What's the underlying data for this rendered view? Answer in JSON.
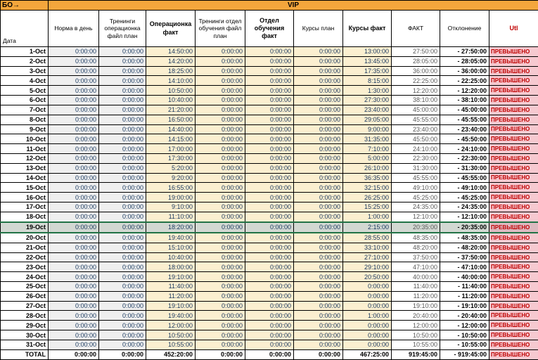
{
  "sheet": {
    "corner_label": "БО→",
    "group_title": "VIP",
    "date_header": "Дата",
    "headers": [
      "Норма в день",
      "Тренинги операционка файл план",
      "Операционка факт",
      "Тренинги отдел обучения файл план",
      "Отдел обучения факт",
      "Курсы план",
      "Курсы факт",
      "ФАКТ",
      "Отклонение",
      "Utl"
    ],
    "selected_date": "19-Oct",
    "total_label": "TOTAL",
    "status_exceeded": "ПРЕВЫШЕНО"
  },
  "rows": [
    [
      "1-Oct",
      "0:00:00",
      "0:00:00",
      "14:50:00",
      "0:00:00",
      "0:00:00",
      "0:00:00",
      "13:00:00",
      "27:50:00",
      "- 27:50:00",
      "ПРЕВЫШЕНО"
    ],
    [
      "2-Oct",
      "0:00:00",
      "0:00:00",
      "14:20:00",
      "0:00:00",
      "0:00:00",
      "0:00:00",
      "13:45:00",
      "28:05:00",
      "- 28:05:00",
      "ПРЕВЫШЕНО"
    ],
    [
      "3-Oct",
      "0:00:00",
      "0:00:00",
      "18:25:00",
      "0:00:00",
      "0:00:00",
      "0:00:00",
      "17:35:00",
      "36:00:00",
      "- 36:00:00",
      "ПРЕВЫШЕНО"
    ],
    [
      "4-Oct",
      "0:00:00",
      "0:00:00",
      "14:10:00",
      "0:00:00",
      "0:00:00",
      "0:00:00",
      "8:15:00",
      "22:25:00",
      "- 22:25:00",
      "ПРЕВЫШЕНО"
    ],
    [
      "5-Oct",
      "0:00:00",
      "0:00:00",
      "10:50:00",
      "0:00:00",
      "0:00:00",
      "0:00:00",
      "1:30:00",
      "12:20:00",
      "- 12:20:00",
      "ПРЕВЫШЕНО"
    ],
    [
      "6-Oct",
      "0:00:00",
      "0:00:00",
      "10:40:00",
      "0:00:00",
      "0:00:00",
      "0:00:00",
      "27:30:00",
      "38:10:00",
      "- 38:10:00",
      "ПРЕВЫШЕНО"
    ],
    [
      "7-Oct",
      "0:00:00",
      "0:00:00",
      "21:20:00",
      "0:00:00",
      "0:00:00",
      "0:00:00",
      "23:40:00",
      "45:00:00",
      "- 45:00:00",
      "ПРЕВЫШЕНО"
    ],
    [
      "8-Oct",
      "0:00:00",
      "0:00:00",
      "16:50:00",
      "0:00:00",
      "0:00:00",
      "0:00:00",
      "29:05:00",
      "45:55:00",
      "- 45:55:00",
      "ПРЕВЫШЕНО"
    ],
    [
      "9-Oct",
      "0:00:00",
      "0:00:00",
      "14:40:00",
      "0:00:00",
      "0:00:00",
      "0:00:00",
      "9:00:00",
      "23:40:00",
      "- 23:40:00",
      "ПРЕВЫШЕНО"
    ],
    [
      "10-Oct",
      "0:00:00",
      "0:00:00",
      "14:15:00",
      "0:00:00",
      "0:00:00",
      "0:00:00",
      "31:35:00",
      "45:50:00",
      "- 45:50:00",
      "ПРЕВЫШЕНО"
    ],
    [
      "11-Oct",
      "0:00:00",
      "0:00:00",
      "17:00:00",
      "0:00:00",
      "0:00:00",
      "0:00:00",
      "7:10:00",
      "24:10:00",
      "- 24:10:00",
      "ПРЕВЫШЕНО"
    ],
    [
      "12-Oct",
      "0:00:00",
      "0:00:00",
      "17:30:00",
      "0:00:00",
      "0:00:00",
      "0:00:00",
      "5:00:00",
      "22:30:00",
      "- 22:30:00",
      "ПРЕВЫШЕНО"
    ],
    [
      "13-Oct",
      "0:00:00",
      "0:00:00",
      "5:20:00",
      "0:00:00",
      "0:00:00",
      "0:00:00",
      "26:10:00",
      "31:30:00",
      "- 31:30:00",
      "ПРЕВЫШЕНО"
    ],
    [
      "14-Oct",
      "0:00:00",
      "0:00:00",
      "9:20:00",
      "0:00:00",
      "0:00:00",
      "0:00:00",
      "36:35:00",
      "45:55:00",
      "- 45:55:00",
      "ПРЕВЫШЕНО"
    ],
    [
      "15-Oct",
      "0:00:00",
      "0:00:00",
      "16:55:00",
      "0:00:00",
      "0:00:00",
      "0:00:00",
      "32:15:00",
      "49:10:00",
      "- 49:10:00",
      "ПРЕВЫШЕНО"
    ],
    [
      "16-Oct",
      "0:00:00",
      "0:00:00",
      "19:00:00",
      "0:00:00",
      "0:00:00",
      "0:00:00",
      "26:25:00",
      "45:25:00",
      "- 45:25:00",
      "ПРЕВЫШЕНО"
    ],
    [
      "17-Oct",
      "0:00:00",
      "0:00:00",
      "9:10:00",
      "0:00:00",
      "0:00:00",
      "0:00:00",
      "15:25:00",
      "24:35:00",
      "- 24:35:00",
      "ПРЕВЫШЕНО"
    ],
    [
      "18-Oct",
      "0:00:00",
      "0:00:00",
      "11:10:00",
      "0:00:00",
      "0:00:00",
      "0:00:00",
      "1:00:00",
      "12:10:00",
      "- 12:10:00",
      "ПРЕВЫШЕНО"
    ],
    [
      "19-Oct",
      "0:00:00",
      "0:00:00",
      "18:20:00",
      "0:00:00",
      "0:00:00",
      "0:00:00",
      "2:15:00",
      "20:35:00",
      "- 20:35:00",
      "ПРЕВЫШЕНО"
    ],
    [
      "20-Oct",
      "0:00:00",
      "0:00:00",
      "19:40:00",
      "0:00:00",
      "0:00:00",
      "0:00:00",
      "28:55:00",
      "48:35:00",
      "- 48:35:00",
      "ПРЕВЫШЕНО"
    ],
    [
      "21-Oct",
      "0:00:00",
      "0:00:00",
      "15:10:00",
      "0:00:00",
      "0:00:00",
      "0:00:00",
      "33:10:00",
      "48:20:00",
      "- 48:20:00",
      "ПРЕВЫШЕНО"
    ],
    [
      "22-Oct",
      "0:00:00",
      "0:00:00",
      "10:40:00",
      "0:00:00",
      "0:00:00",
      "0:00:00",
      "27:10:00",
      "37:50:00",
      "- 37:50:00",
      "ПРЕВЫШЕНО"
    ],
    [
      "23-Oct",
      "0:00:00",
      "0:00:00",
      "18:00:00",
      "0:00:00",
      "0:00:00",
      "0:00:00",
      "29:10:00",
      "47:10:00",
      "- 47:10:00",
      "ПРЕВЫШЕНО"
    ],
    [
      "24-Oct",
      "0:00:00",
      "0:00:00",
      "19:10:00",
      "0:00:00",
      "0:00:00",
      "0:00:00",
      "20:50:00",
      "40:00:00",
      "- 40:00:00",
      "ПРЕВЫШЕНО"
    ],
    [
      "25-Oct",
      "0:00:00",
      "0:00:00",
      "11:40:00",
      "0:00:00",
      "0:00:00",
      "0:00:00",
      "0:00:00",
      "11:40:00",
      "- 11:40:00",
      "ПРЕВЫШЕНО"
    ],
    [
      "26-Oct",
      "0:00:00",
      "0:00:00",
      "11:20:00",
      "0:00:00",
      "0:00:00",
      "0:00:00",
      "0:00:00",
      "11:20:00",
      "- 11:20:00",
      "ПРЕВЫШЕНО"
    ],
    [
      "27-Oct",
      "0:00:00",
      "0:00:00",
      "19:10:00",
      "0:00:00",
      "0:00:00",
      "0:00:00",
      "0:00:00",
      "19:10:00",
      "- 19:10:00",
      "ПРЕВЫШЕНО"
    ],
    [
      "28-Oct",
      "0:00:00",
      "0:00:00",
      "19:40:00",
      "0:00:00",
      "0:00:00",
      "0:00:00",
      "1:00:00",
      "20:40:00",
      "- 20:40:00",
      "ПРЕВЫШЕНО"
    ],
    [
      "29-Oct",
      "0:00:00",
      "0:00:00",
      "12:00:00",
      "0:00:00",
      "0:00:00",
      "0:00:00",
      "0:00:00",
      "12:00:00",
      "- 12:00:00",
      "ПРЕВЫШЕНО"
    ],
    [
      "30-Oct",
      "0:00:00",
      "0:00:00",
      "10:50:00",
      "0:00:00",
      "0:00:00",
      "0:00:00",
      "0:00:00",
      "10:50:00",
      "- 10:50:00",
      "ПРЕВЫШЕНО"
    ],
    [
      "31-Oct",
      "0:00:00",
      "0:00:00",
      "10:55:00",
      "0:00:00",
      "0:00:00",
      "0:00:00",
      "0:00:00",
      "10:55:00",
      "- 10:55:00",
      "ПРЕВЫШЕНО"
    ]
  ],
  "total_row": [
    "TOTAL",
    "0:00:00",
    "0:00:00",
    "452:20:00",
    "0:00:00",
    "0:00:00",
    "0:00:00",
    "467:25:00",
    "919:45:00",
    "- 919:45:00",
    "ПРЕВЫШЕНО"
  ],
  "colors": {
    "header_bar": "#F4A63C",
    "cream": "#FBEFD0",
    "gray": "#EFEFEF",
    "alert_bg": "#F6C9D0",
    "alert_text": "#C00000",
    "value_text": "#17375E",
    "selection": "#217346"
  }
}
